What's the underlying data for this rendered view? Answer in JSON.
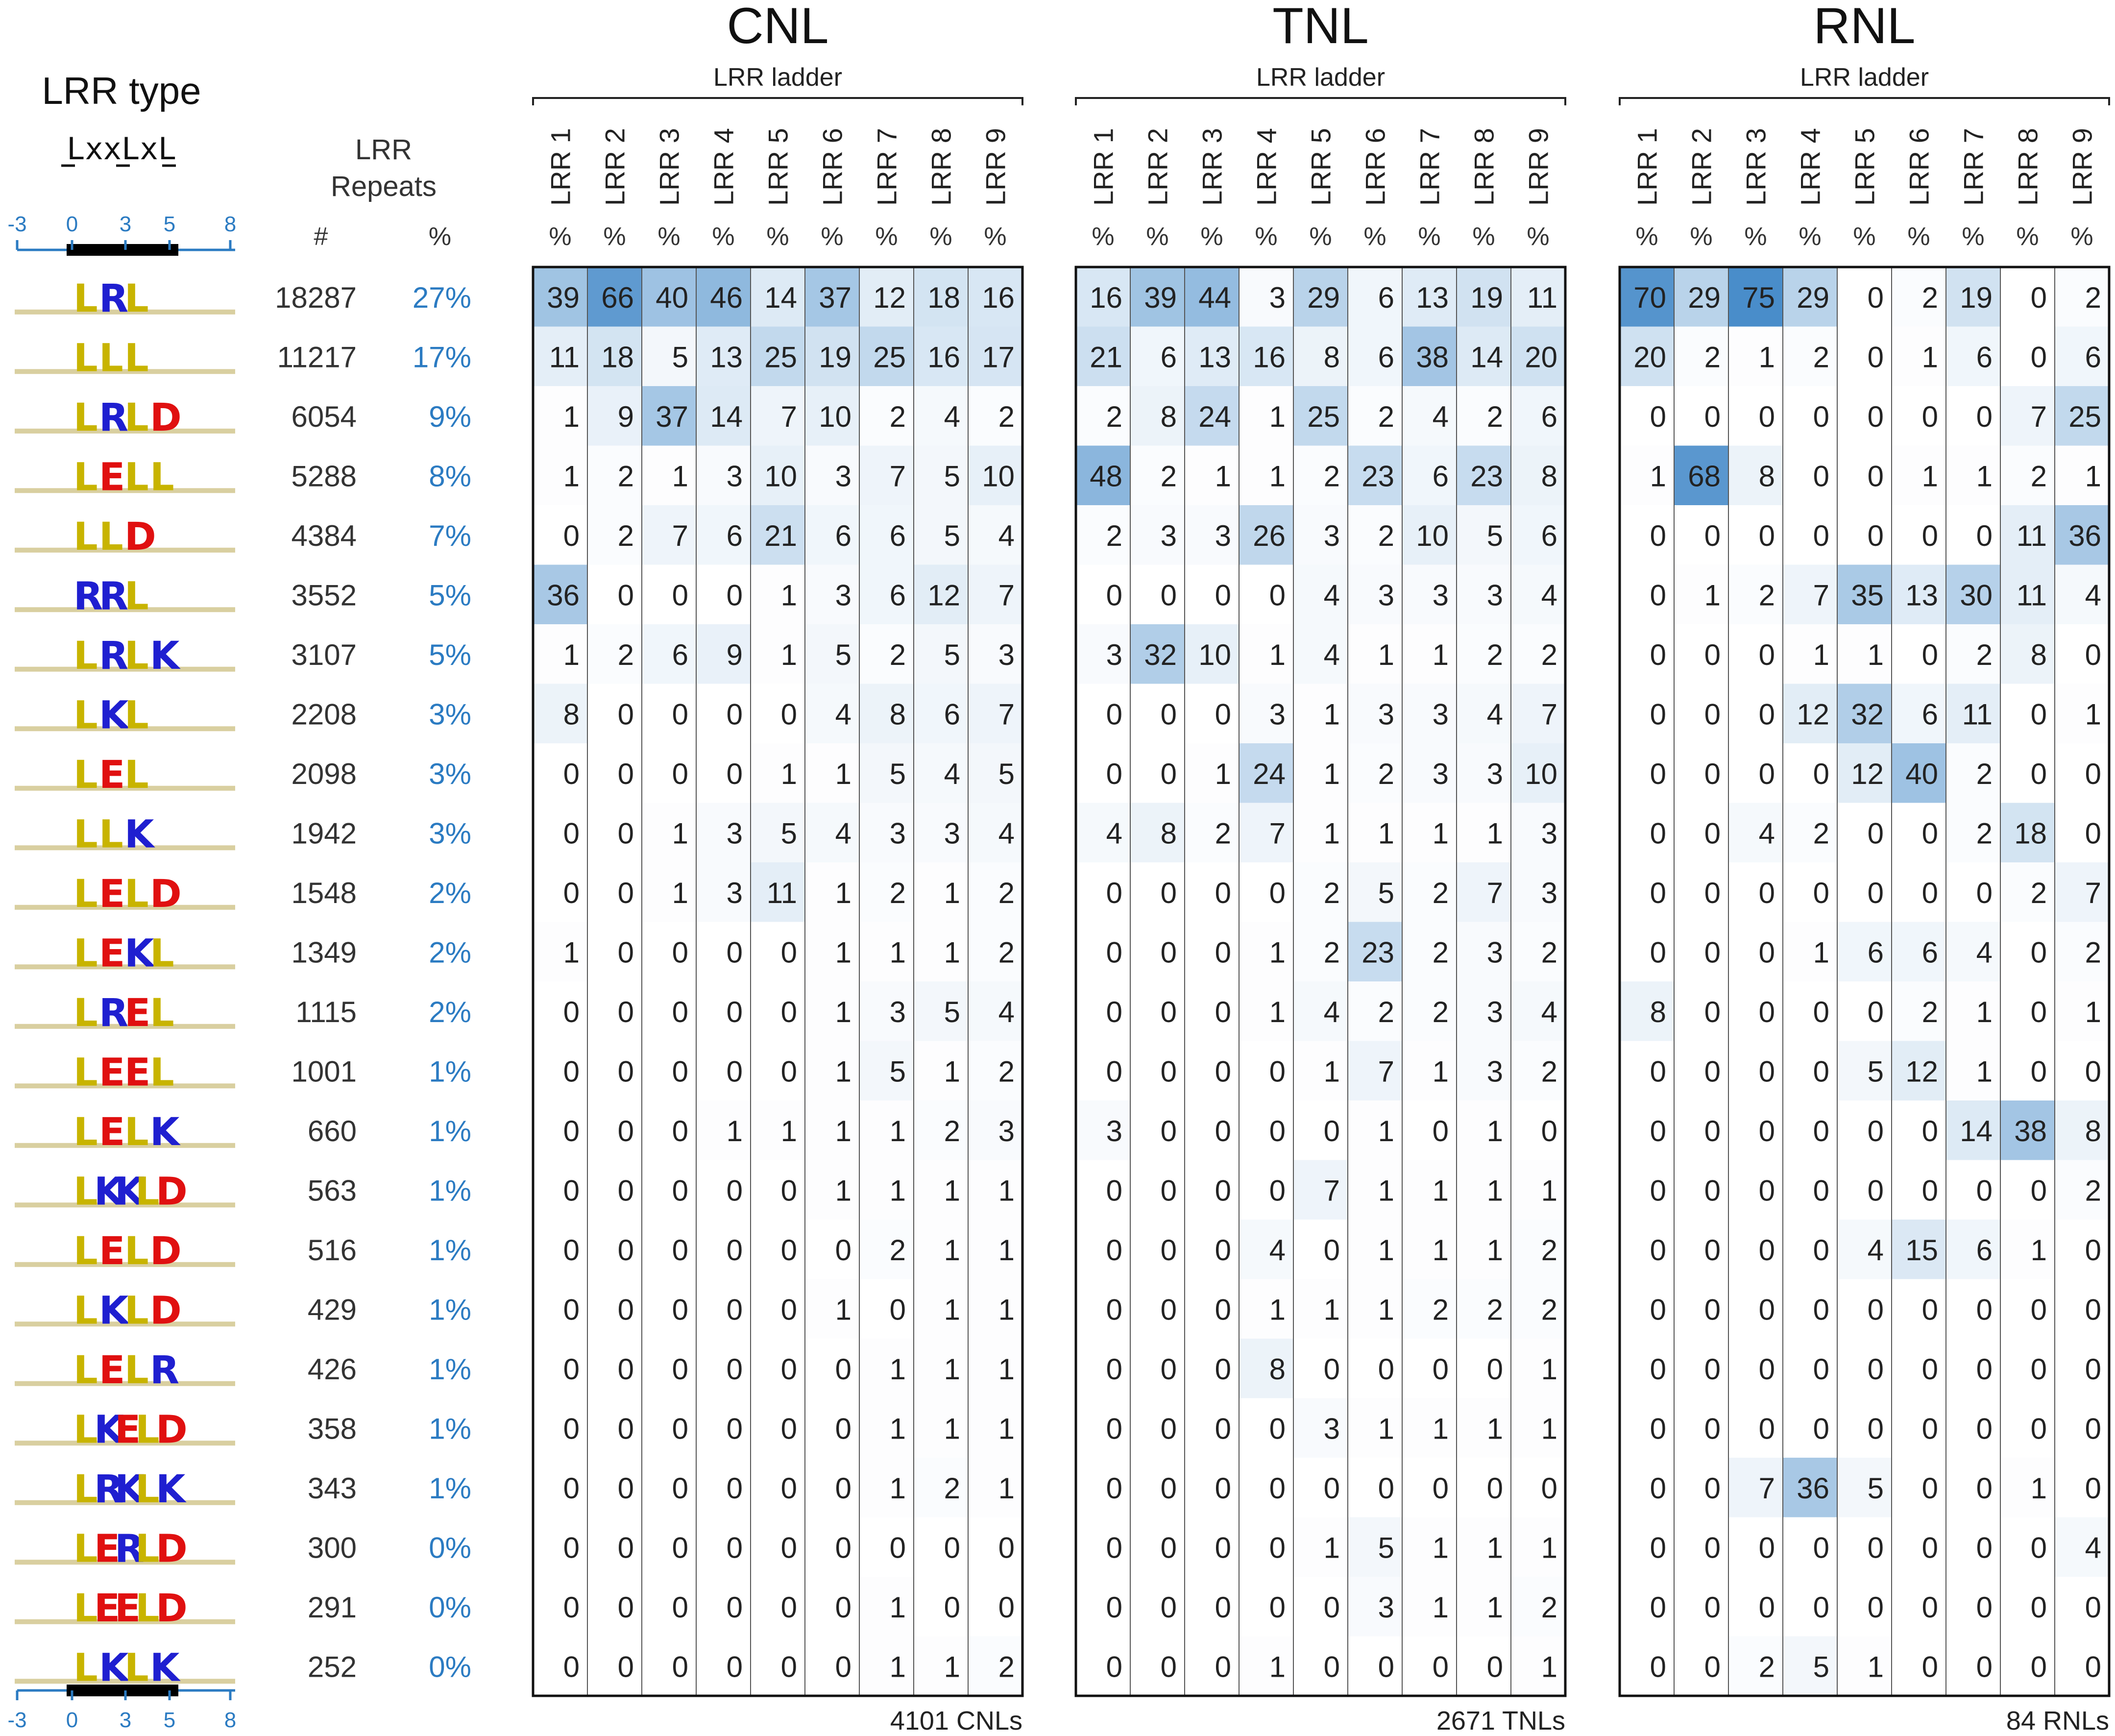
{
  "left_panel": {
    "title": "LRR type",
    "motif": "LxxLxL",
    "axis_ticks": [
      "-3",
      "0",
      "3",
      "5",
      "8"
    ],
    "count_header_line1": "LRR",
    "count_header_line2": "Repeats",
    "count_symbol": "#",
    "share_symbol": "%"
  },
  "chart_data": {
    "type": "heatmap",
    "rows": [
      {
        "count": "18287",
        "share": "27%",
        "logo": [
          "L",
          "R",
          "L"
        ]
      },
      {
        "count": "11217",
        "share": "17%",
        "logo": [
          "L",
          "L",
          "L"
        ]
      },
      {
        "count": "6054",
        "share": "9%",
        "logo": [
          "L",
          "R",
          "L",
          "D"
        ]
      },
      {
        "count": "5288",
        "share": "8%",
        "logo": [
          "L",
          "E",
          "L",
          "L"
        ]
      },
      {
        "count": "4384",
        "share": "7%",
        "logo": [
          "L",
          "L",
          "D"
        ]
      },
      {
        "count": "3552",
        "share": "5%",
        "logo": [
          "R",
          "R",
          "L"
        ]
      },
      {
        "count": "3107",
        "share": "5%",
        "logo": [
          "L",
          "R",
          "L",
          "K"
        ]
      },
      {
        "count": "2208",
        "share": "3%",
        "logo": [
          "L",
          "K",
          "L"
        ]
      },
      {
        "count": "2098",
        "share": "3%",
        "logo": [
          "L",
          "E",
          "L"
        ]
      },
      {
        "count": "1942",
        "share": "3%",
        "logo": [
          "L",
          "L",
          "K"
        ]
      },
      {
        "count": "1548",
        "share": "2%",
        "logo": [
          "L",
          "E",
          "L",
          "D"
        ]
      },
      {
        "count": "1349",
        "share": "2%",
        "logo": [
          "L",
          "E",
          "K",
          "L"
        ]
      },
      {
        "count": "1115",
        "share": "2%",
        "logo": [
          "L",
          "R",
          "E",
          "L"
        ]
      },
      {
        "count": "1001",
        "share": "1%",
        "logo": [
          "L",
          "E",
          "E",
          "L"
        ]
      },
      {
        "count": "660",
        "share": "1%",
        "logo": [
          "L",
          "E",
          "L",
          "K"
        ]
      },
      {
        "count": "563",
        "share": "1%",
        "logo": [
          "L",
          "K",
          "K",
          "L",
          "D"
        ]
      },
      {
        "count": "516",
        "share": "1%",
        "logo": [
          "L",
          "E",
          "L",
          "D"
        ]
      },
      {
        "count": "429",
        "share": "1%",
        "logo": [
          "L",
          "K",
          "L",
          "D"
        ]
      },
      {
        "count": "426",
        "share": "1%",
        "logo": [
          "L",
          "E",
          "L",
          "R"
        ]
      },
      {
        "count": "358",
        "share": "1%",
        "logo": [
          "L",
          "K",
          "E",
          "L",
          "D"
        ]
      },
      {
        "count": "343",
        "share": "1%",
        "logo": [
          "L",
          "R",
          "K",
          "L",
          "K"
        ]
      },
      {
        "count": "300",
        "share": "0%",
        "logo": [
          "L",
          "E",
          "R",
          "L",
          "D"
        ]
      },
      {
        "count": "291",
        "share": "0%",
        "logo": [
          "L",
          "E",
          "E",
          "L",
          "D"
        ]
      },
      {
        "count": "252",
        "share": "0%",
        "logo": [
          "L",
          "K",
          "L",
          "K"
        ]
      }
    ],
    "panels": [
      {
        "title": "CNL",
        "subtitle": "LRR ladder",
        "total_label": "4101 CNLs",
        "columns": [
          "LRR 1",
          "LRR 2",
          "LRR 3",
          "LRR 4",
          "LRR 5",
          "LRR 6",
          "LRR 7",
          "LRR 8",
          "LRR 9"
        ],
        "unit": "%",
        "values": [
          [
            39,
            66,
            40,
            46,
            14,
            37,
            12,
            18,
            16
          ],
          [
            11,
            18,
            5,
            13,
            25,
            19,
            25,
            16,
            17
          ],
          [
            1,
            9,
            37,
            14,
            7,
            10,
            2,
            4,
            2
          ],
          [
            1,
            2,
            1,
            3,
            10,
            3,
            7,
            5,
            10
          ],
          [
            0,
            2,
            7,
            6,
            21,
            6,
            6,
            5,
            4
          ],
          [
            36,
            0,
            0,
            0,
            1,
            3,
            6,
            12,
            7
          ],
          [
            1,
            2,
            6,
            9,
            1,
            5,
            2,
            5,
            3
          ],
          [
            8,
            0,
            0,
            0,
            0,
            4,
            8,
            6,
            7
          ],
          [
            0,
            0,
            0,
            0,
            1,
            1,
            5,
            4,
            5
          ],
          [
            0,
            0,
            1,
            3,
            5,
            4,
            3,
            3,
            4
          ],
          [
            0,
            0,
            1,
            3,
            11,
            1,
            2,
            1,
            2
          ],
          [
            1,
            0,
            0,
            0,
            0,
            1,
            1,
            1,
            2
          ],
          [
            0,
            0,
            0,
            0,
            0,
            1,
            3,
            5,
            4
          ],
          [
            0,
            0,
            0,
            0,
            0,
            1,
            5,
            1,
            2
          ],
          [
            0,
            0,
            0,
            1,
            1,
            1,
            1,
            2,
            3
          ],
          [
            0,
            0,
            0,
            0,
            0,
            1,
            1,
            1,
            1
          ],
          [
            0,
            0,
            0,
            0,
            0,
            0,
            2,
            1,
            1
          ],
          [
            0,
            0,
            0,
            0,
            0,
            1,
            0,
            1,
            1
          ],
          [
            0,
            0,
            0,
            0,
            0,
            0,
            1,
            1,
            1
          ],
          [
            0,
            0,
            0,
            0,
            0,
            0,
            1,
            1,
            1
          ],
          [
            0,
            0,
            0,
            0,
            0,
            0,
            1,
            2,
            1
          ],
          [
            0,
            0,
            0,
            0,
            0,
            0,
            0,
            0,
            0
          ],
          [
            0,
            0,
            0,
            0,
            0,
            0,
            1,
            0,
            0
          ],
          [
            0,
            0,
            0,
            0,
            0,
            0,
            1,
            1,
            2
          ]
        ]
      },
      {
        "title": "TNL",
        "subtitle": "LRR ladder",
        "total_label": "2671 TNLs",
        "columns": [
          "LRR 1",
          "LRR 2",
          "LRR 3",
          "LRR 4",
          "LRR 5",
          "LRR 6",
          "LRR 7",
          "LRR 8",
          "LRR 9"
        ],
        "unit": "%",
        "values": [
          [
            16,
            39,
            44,
            3,
            29,
            6,
            13,
            19,
            11
          ],
          [
            21,
            6,
            13,
            16,
            8,
            6,
            38,
            14,
            20
          ],
          [
            2,
            8,
            24,
            1,
            25,
            2,
            4,
            2,
            6
          ],
          [
            48,
            2,
            1,
            1,
            2,
            23,
            6,
            23,
            8
          ],
          [
            2,
            3,
            3,
            26,
            3,
            2,
            10,
            5,
            6
          ],
          [
            0,
            0,
            0,
            0,
            4,
            3,
            3,
            3,
            4
          ],
          [
            3,
            32,
            10,
            1,
            4,
            1,
            1,
            2,
            2
          ],
          [
            0,
            0,
            0,
            3,
            1,
            3,
            3,
            4,
            7
          ],
          [
            0,
            0,
            1,
            24,
            1,
            2,
            3,
            3,
            10
          ],
          [
            4,
            8,
            2,
            7,
            1,
            1,
            1,
            1,
            3
          ],
          [
            0,
            0,
            0,
            0,
            2,
            5,
            2,
            7,
            3
          ],
          [
            0,
            0,
            0,
            1,
            2,
            23,
            2,
            3,
            2
          ],
          [
            0,
            0,
            0,
            1,
            4,
            2,
            2,
            3,
            4
          ],
          [
            0,
            0,
            0,
            0,
            1,
            7,
            1,
            3,
            2
          ],
          [
            3,
            0,
            0,
            0,
            0,
            1,
            0,
            1,
            0
          ],
          [
            0,
            0,
            0,
            0,
            7,
            1,
            1,
            1,
            1
          ],
          [
            0,
            0,
            0,
            4,
            0,
            1,
            1,
            1,
            2
          ],
          [
            0,
            0,
            0,
            1,
            1,
            1,
            2,
            2,
            2
          ],
          [
            0,
            0,
            0,
            8,
            0,
            0,
            0,
            0,
            1
          ],
          [
            0,
            0,
            0,
            0,
            3,
            1,
            1,
            1,
            1
          ],
          [
            0,
            0,
            0,
            0,
            0,
            0,
            0,
            0,
            0
          ],
          [
            0,
            0,
            0,
            0,
            1,
            5,
            1,
            1,
            1
          ],
          [
            0,
            0,
            0,
            0,
            0,
            3,
            1,
            1,
            2
          ],
          [
            0,
            0,
            0,
            1,
            0,
            0,
            0,
            0,
            1
          ]
        ]
      },
      {
        "title": "RNL",
        "subtitle": "LRR ladder",
        "total_label": "84 RNLs",
        "columns": [
          "LRR 1",
          "LRR 2",
          "LRR 3",
          "LRR 4",
          "LRR 5",
          "LRR 6",
          "LRR 7",
          "LRR 8",
          "LRR 9"
        ],
        "unit": "%",
        "values": [
          [
            70,
            29,
            75,
            29,
            0,
            2,
            19,
            0,
            2
          ],
          [
            20,
            2,
            1,
            2,
            0,
            1,
            6,
            0,
            6
          ],
          [
            0,
            0,
            0,
            0,
            0,
            0,
            0,
            7,
            25
          ],
          [
            1,
            68,
            8,
            0,
            0,
            1,
            1,
            2,
            1
          ],
          [
            0,
            0,
            0,
            0,
            0,
            0,
            0,
            11,
            36
          ],
          [
            0,
            1,
            2,
            7,
            35,
            13,
            30,
            11,
            4
          ],
          [
            0,
            0,
            0,
            1,
            1,
            0,
            2,
            8,
            0
          ],
          [
            0,
            0,
            0,
            12,
            32,
            6,
            11,
            0,
            1
          ],
          [
            0,
            0,
            0,
            0,
            12,
            40,
            2,
            0,
            0
          ],
          [
            0,
            0,
            4,
            2,
            0,
            0,
            2,
            18,
            0
          ],
          [
            0,
            0,
            0,
            0,
            0,
            0,
            0,
            2,
            7
          ],
          [
            0,
            0,
            0,
            1,
            6,
            6,
            4,
            0,
            2
          ],
          [
            8,
            0,
            0,
            0,
            0,
            2,
            1,
            0,
            1
          ],
          [
            0,
            0,
            0,
            0,
            5,
            12,
            1,
            0,
            0
          ],
          [
            0,
            0,
            0,
            0,
            0,
            0,
            14,
            38,
            8
          ],
          [
            0,
            0,
            0,
            0,
            0,
            0,
            0,
            0,
            2
          ],
          [
            0,
            0,
            0,
            0,
            4,
            15,
            6,
            1,
            0
          ],
          [
            0,
            0,
            0,
            0,
            0,
            0,
            0,
            0,
            0
          ],
          [
            0,
            0,
            0,
            0,
            0,
            0,
            0,
            0,
            0
          ],
          [
            0,
            0,
            0,
            0,
            0,
            0,
            0,
            0,
            0
          ],
          [
            0,
            0,
            7,
            36,
            5,
            0,
            0,
            1,
            0
          ],
          [
            0,
            0,
            0,
            0,
            0,
            0,
            0,
            0,
            4
          ],
          [
            0,
            0,
            0,
            0,
            0,
            0,
            0,
            0,
            0
          ],
          [
            0,
            0,
            2,
            5,
            1,
            0,
            0,
            0,
            0
          ]
        ]
      }
    ],
    "color_scale": {
      "low": "#ffffff",
      "high": "#3d85c6",
      "max_value": 80
    },
    "logo_colors": {
      "L": "#c8b400",
      "R": "#1f1fd0",
      "K": "#1f1fd0",
      "E": "#e01010",
      "D": "#e01010"
    },
    "accent_color": "#2b7bc2"
  }
}
